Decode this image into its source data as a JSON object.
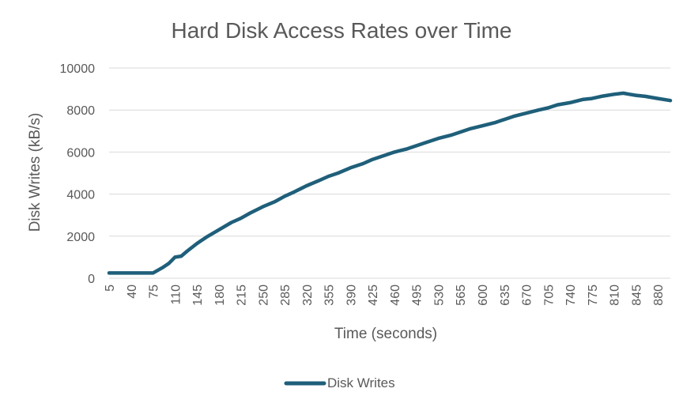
{
  "chart_data": {
    "type": "line",
    "title": "Hard Disk Access Rates over Time",
    "xlabel": "Time (seconds)",
    "ylabel": "Disk Writes (kB/s)",
    "ylim": [
      0,
      10000
    ],
    "yticks": [
      0,
      2000,
      4000,
      6000,
      8000,
      10000
    ],
    "x_tick_labels": [
      5,
      40,
      75,
      110,
      145,
      180,
      215,
      250,
      285,
      320,
      355,
      390,
      425,
      460,
      495,
      530,
      565,
      600,
      635,
      670,
      705,
      740,
      775,
      810,
      845,
      880
    ],
    "grid": true,
    "legend_position": "bottom",
    "series": [
      {
        "name": "Disk Writes",
        "color": "#1f5f7a",
        "x": [
          5,
          40,
          60,
          75,
          90,
          100,
          110,
          120,
          130,
          145,
          160,
          180,
          200,
          215,
          230,
          250,
          270,
          285,
          300,
          320,
          340,
          355,
          370,
          390,
          410,
          425,
          440,
          460,
          480,
          495,
          510,
          530,
          550,
          565,
          580,
          600,
          620,
          635,
          650,
          670,
          690,
          705,
          720,
          740,
          760,
          775,
          790,
          810,
          825,
          835,
          845,
          860,
          880,
          900
        ],
        "values": [
          250,
          250,
          250,
          250,
          500,
          700,
          1000,
          1050,
          1300,
          1650,
          1950,
          2300,
          2650,
          2850,
          3100,
          3400,
          3650,
          3900,
          4100,
          4400,
          4650,
          4850,
          5000,
          5250,
          5450,
          5650,
          5800,
          6000,
          6150,
          6300,
          6450,
          6650,
          6800,
          6950,
          7100,
          7250,
          7400,
          7550,
          7700,
          7850,
          8000,
          8100,
          8250,
          8350,
          8500,
          8550,
          8650,
          8750,
          8800,
          8750,
          8700,
          8650,
          8550,
          8450
        ]
      }
    ]
  }
}
